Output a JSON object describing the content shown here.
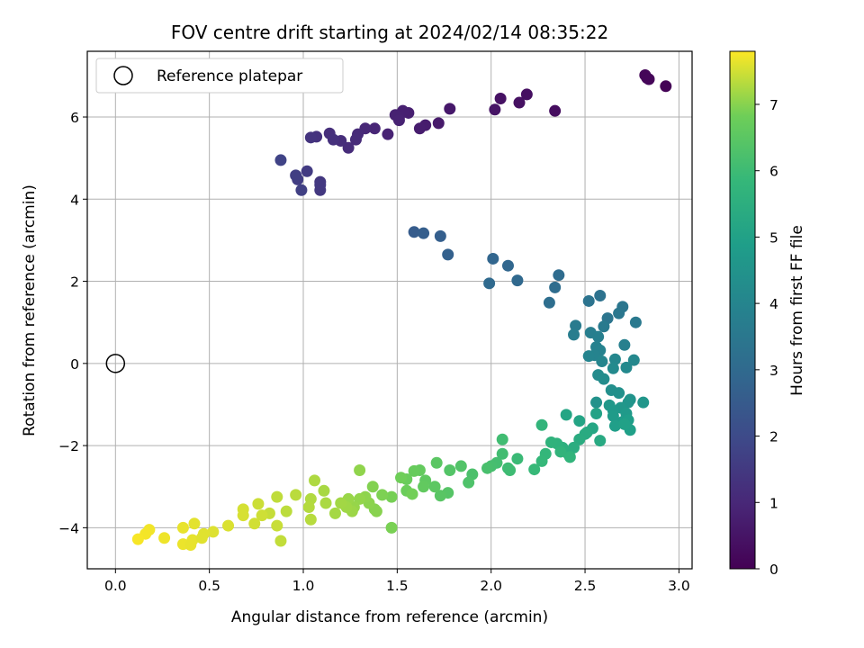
{
  "chart_data": {
    "type": "scatter",
    "title": "FOV centre drift starting at 2024/02/14 08:35:22",
    "xlabel": "Angular distance from reference (arcmin)",
    "ylabel": "Rotation from reference (arcmin)",
    "xlim": [
      -0.15,
      3.07
    ],
    "ylim": [
      -5.0,
      7.6
    ],
    "xticks": [
      0.0,
      0.5,
      1.0,
      1.5,
      2.0,
      2.5,
      3.0
    ],
    "xtick_labels": [
      "0.0",
      "0.5",
      "1.0",
      "1.5",
      "2.0",
      "2.5",
      "3.0"
    ],
    "yticks": [
      -4,
      -2,
      0,
      2,
      4,
      6
    ],
    "ytick_labels": [
      "−4",
      "−2",
      "0",
      "2",
      "4",
      "6"
    ],
    "grid": true,
    "legend": {
      "placement": "top-left",
      "label": "Reference platepar"
    },
    "reference_point": {
      "x": 0.0,
      "y": 0.0
    },
    "colorbar": {
      "label": "Hours from first FF file",
      "range": [
        0,
        7.8
      ],
      "ticks": [
        0,
        1,
        2,
        3,
        4,
        5,
        6,
        7
      ],
      "tick_labels": [
        "0",
        "1",
        "2",
        "3",
        "4",
        "5",
        "6",
        "7"
      ],
      "colormap": "viridis"
    },
    "points": [
      [
        2.93,
        6.75,
        0.05
      ],
      [
        2.83,
        6.95,
        0.1
      ],
      [
        2.82,
        7.02,
        0.12
      ],
      [
        2.84,
        6.92,
        0.14
      ],
      [
        2.34,
        6.15,
        0.3
      ],
      [
        2.19,
        6.55,
        0.35
      ],
      [
        2.15,
        6.35,
        0.4
      ],
      [
        2.05,
        6.45,
        0.42
      ],
      [
        2.02,
        6.18,
        0.48
      ],
      [
        1.78,
        6.2,
        0.6
      ],
      [
        1.72,
        5.85,
        0.65
      ],
      [
        1.65,
        5.8,
        0.7
      ],
      [
        1.62,
        5.72,
        0.73
      ],
      [
        1.56,
        6.1,
        0.78
      ],
      [
        1.53,
        6.15,
        0.8
      ],
      [
        1.51,
        6.0,
        0.82
      ],
      [
        1.49,
        6.05,
        0.84
      ],
      [
        1.51,
        5.92,
        0.86
      ],
      [
        1.45,
        5.58,
        0.9
      ],
      [
        1.38,
        5.72,
        0.95
      ],
      [
        1.33,
        5.72,
        1.0
      ],
      [
        1.29,
        5.58,
        1.05
      ],
      [
        1.28,
        5.45,
        1.08
      ],
      [
        1.24,
        5.25,
        1.12
      ],
      [
        1.2,
        5.42,
        1.16
      ],
      [
        1.14,
        5.6,
        1.2
      ],
      [
        1.16,
        5.45,
        1.24
      ],
      [
        1.07,
        5.52,
        1.3
      ],
      [
        1.04,
        5.5,
        1.34
      ],
      [
        1.09,
        4.42,
        1.42
      ],
      [
        1.09,
        4.22,
        1.46
      ],
      [
        1.09,
        4.35,
        1.5
      ],
      [
        1.02,
        4.68,
        1.55
      ],
      [
        0.97,
        4.48,
        1.6
      ],
      [
        0.96,
        4.58,
        1.64
      ],
      [
        0.99,
        4.22,
        1.7
      ],
      [
        0.88,
        4.95,
        1.78
      ],
      [
        1.59,
        3.2,
        2.55
      ],
      [
        1.64,
        3.17,
        2.6
      ],
      [
        1.73,
        3.1,
        2.65
      ],
      [
        1.77,
        2.65,
        2.72
      ],
      [
        2.01,
        2.55,
        2.85
      ],
      [
        2.09,
        2.38,
        2.9
      ],
      [
        2.14,
        2.02,
        2.95
      ],
      [
        1.99,
        1.95,
        3.0
      ],
      [
        2.36,
        2.15,
        3.08
      ],
      [
        2.34,
        1.85,
        3.12
      ],
      [
        2.31,
        1.48,
        3.16
      ],
      [
        2.58,
        1.65,
        3.3
      ],
      [
        2.52,
        1.52,
        3.35
      ],
      [
        2.62,
        1.1,
        3.4
      ],
      [
        2.7,
        1.38,
        3.45
      ],
      [
        2.68,
        1.22,
        3.5
      ],
      [
        2.77,
        1.0,
        3.55
      ],
      [
        2.6,
        0.9,
        3.6
      ],
      [
        2.45,
        0.92,
        3.65
      ],
      [
        2.44,
        0.7,
        3.7
      ],
      [
        2.53,
        0.75,
        3.74
      ],
      [
        2.57,
        0.65,
        3.78
      ],
      [
        2.71,
        0.45,
        3.82
      ],
      [
        2.56,
        0.4,
        3.86
      ],
      [
        2.58,
        0.32,
        3.9
      ],
      [
        2.55,
        0.2,
        3.94
      ],
      [
        2.52,
        0.18,
        3.98
      ],
      [
        2.59,
        0.05,
        4.02
      ],
      [
        2.66,
        0.1,
        4.06
      ],
      [
        2.76,
        0.08,
        4.1
      ],
      [
        2.72,
        -0.1,
        4.14
      ],
      [
        2.65,
        -0.12,
        4.18
      ],
      [
        2.57,
        -0.28,
        4.22
      ],
      [
        2.6,
        -0.38,
        4.26
      ],
      [
        2.64,
        -0.65,
        4.35
      ],
      [
        2.68,
        -0.72,
        4.4
      ],
      [
        2.56,
        -0.95,
        4.45
      ],
      [
        2.74,
        -0.88,
        4.5
      ],
      [
        2.73,
        -0.95,
        4.55
      ],
      [
        2.81,
        -0.95,
        4.6
      ],
      [
        2.69,
        -1.08,
        4.62
      ],
      [
        2.63,
        -1.02,
        4.66
      ],
      [
        2.65,
        -1.15,
        4.7
      ],
      [
        2.72,
        -1.22,
        4.74
      ],
      [
        2.65,
        -1.28,
        4.78
      ],
      [
        2.7,
        -1.42,
        4.82
      ],
      [
        2.73,
        -1.38,
        4.86
      ],
      [
        2.66,
        -1.52,
        4.9
      ],
      [
        2.74,
        -1.62,
        4.94
      ],
      [
        2.71,
        -1.48,
        4.98
      ],
      [
        2.56,
        -1.22,
        5.05
      ],
      [
        2.47,
        -1.4,
        5.1
      ],
      [
        2.4,
        -1.25,
        5.15
      ],
      [
        2.54,
        -1.58,
        5.2
      ],
      [
        2.51,
        -1.68,
        5.25
      ],
      [
        2.58,
        -1.88,
        5.3
      ],
      [
        2.5,
        -1.72,
        5.35
      ],
      [
        2.47,
        -1.85,
        5.4
      ],
      [
        2.44,
        -2.05,
        5.45
      ],
      [
        2.41,
        -2.2,
        5.5
      ],
      [
        2.38,
        -2.05,
        5.55
      ],
      [
        2.35,
        -1.95,
        5.6
      ],
      [
        2.32,
        -1.92,
        5.65
      ],
      [
        2.37,
        -2.15,
        5.7
      ],
      [
        2.42,
        -2.28,
        5.72
      ],
      [
        2.27,
        -1.5,
        5.75
      ],
      [
        2.29,
        -2.2,
        5.8
      ],
      [
        2.27,
        -2.38,
        5.84
      ],
      [
        2.23,
        -2.58,
        5.88
      ],
      [
        2.14,
        -2.32,
        5.95
      ],
      [
        2.09,
        -2.55,
        6.0
      ],
      [
        2.1,
        -2.6,
        6.02
      ],
      [
        2.06,
        -1.85,
        6.05
      ],
      [
        2.06,
        -2.2,
        6.08
      ],
      [
        2.03,
        -2.42,
        6.12
      ],
      [
        2.0,
        -2.5,
        6.16
      ],
      [
        1.98,
        -2.55,
        6.2
      ],
      [
        1.9,
        -2.7,
        6.25
      ],
      [
        1.88,
        -2.9,
        6.3
      ],
      [
        1.84,
        -2.5,
        6.34
      ],
      [
        1.78,
        -2.6,
        6.38
      ],
      [
        1.77,
        -3.15,
        6.42
      ],
      [
        1.73,
        -3.22,
        6.46
      ],
      [
        1.71,
        -2.42,
        6.5
      ],
      [
        1.7,
        -3.0,
        6.54
      ],
      [
        1.65,
        -2.85,
        6.58
      ],
      [
        1.64,
        -3.0,
        6.62
      ],
      [
        1.62,
        -2.6,
        6.66
      ],
      [
        1.59,
        -2.62,
        6.7
      ],
      [
        1.55,
        -2.82,
        6.74
      ],
      [
        1.55,
        -3.1,
        6.78
      ],
      [
        1.52,
        -2.78,
        6.82
      ],
      [
        1.58,
        -3.18,
        6.85
      ],
      [
        1.47,
        -3.25,
        6.88
      ],
      [
        1.47,
        -4.0,
        6.9
      ],
      [
        1.42,
        -3.2,
        6.93
      ],
      [
        1.37,
        -3.0,
        6.96
      ],
      [
        1.38,
        -3.55,
        6.98
      ],
      [
        1.39,
        -3.6,
        7.0
      ],
      [
        1.35,
        -3.4,
        7.02
      ],
      [
        1.33,
        -3.25,
        7.04
      ],
      [
        1.3,
        -2.6,
        7.06
      ],
      [
        1.3,
        -3.3,
        7.08
      ],
      [
        1.27,
        -3.5,
        7.1
      ],
      [
        1.24,
        -3.3,
        7.12
      ],
      [
        1.26,
        -3.6,
        7.14
      ],
      [
        1.23,
        -3.5,
        7.16
      ],
      [
        1.2,
        -3.4,
        7.18
      ],
      [
        1.17,
        -3.65,
        7.2
      ],
      [
        1.11,
        -3.1,
        7.22
      ],
      [
        1.12,
        -3.4,
        7.24
      ],
      [
        1.06,
        -2.85,
        7.26
      ],
      [
        1.04,
        -3.3,
        7.28
      ],
      [
        1.03,
        -3.5,
        7.3
      ],
      [
        1.04,
        -3.8,
        7.32
      ],
      [
        0.96,
        -3.2,
        7.34
      ],
      [
        0.91,
        -3.6,
        7.36
      ],
      [
        0.86,
        -3.25,
        7.38
      ],
      [
        0.88,
        -4.32,
        7.4
      ],
      [
        0.82,
        -3.65,
        7.42
      ],
      [
        0.86,
        -3.95,
        7.44
      ],
      [
        0.76,
        -3.42,
        7.46
      ],
      [
        0.78,
        -3.7,
        7.48
      ],
      [
        0.74,
        -3.9,
        7.5
      ],
      [
        0.68,
        -3.55,
        7.52
      ],
      [
        0.68,
        -3.7,
        7.54
      ],
      [
        0.6,
        -3.95,
        7.56
      ],
      [
        0.52,
        -4.1,
        7.58
      ],
      [
        0.47,
        -4.15,
        7.6
      ],
      [
        0.42,
        -3.9,
        7.62
      ],
      [
        0.41,
        -4.3,
        7.64
      ],
      [
        0.36,
        -4.0,
        7.66
      ],
      [
        0.36,
        -4.4,
        7.68
      ],
      [
        0.26,
        -4.25,
        7.7
      ],
      [
        0.18,
        -4.05,
        7.72
      ],
      [
        0.16,
        -4.15,
        7.74
      ],
      [
        0.12,
        -4.28,
        7.76
      ],
      [
        0.4,
        -4.42,
        7.66
      ],
      [
        0.46,
        -4.25,
        7.6
      ]
    ]
  }
}
